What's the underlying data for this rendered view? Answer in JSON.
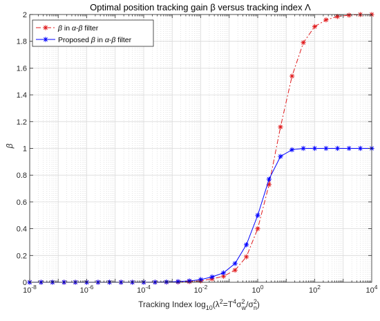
{
  "chart_data": {
    "type": "line",
    "title": "Optimal position tracking gain  β versus tracking index  Λ",
    "xlabel": "Tracking Index log",
    "xlabel_sub": "10",
    "xlabel_rest": "(λ",
    "xlabel_sup1": "2",
    "xlabel_mid1": "=T",
    "xlabel_sup2": "4",
    "xlabel_mid2": "σ",
    "xlabel_sup3": "2",
    "xlabel_sub3": "w",
    "xlabel_mid3": "/σ",
    "xlabel_sup4": "2",
    "xlabel_sub4": "n",
    "xlabel_end": ")",
    "ylabel": "β",
    "x_scale": "log",
    "xlim": [
      1e-08,
      10000
    ],
    "ylim": [
      0,
      2
    ],
    "grid": true,
    "legend_position": "top-left",
    "x_ticks": [
      {
        "value": 1e-08,
        "base": "10",
        "exp": "-8"
      },
      {
        "value": 1e-06,
        "base": "10",
        "exp": "-6"
      },
      {
        "value": 0.0001,
        "base": "10",
        "exp": "-4"
      },
      {
        "value": 0.01,
        "base": "10",
        "exp": "-2"
      },
      {
        "value": 1,
        "base": "10",
        "exp": "0"
      },
      {
        "value": 100,
        "base": "10",
        "exp": "2"
      },
      {
        "value": 10000,
        "base": "10",
        "exp": "4"
      }
    ],
    "y_ticks": [
      "0",
      "0.2",
      "0.4",
      "0.6",
      "0.8",
      "1",
      "1.2",
      "1.4",
      "1.6",
      "1.8",
      "2"
    ],
    "x": [
      1e-08,
      2.5e-08,
      6.3e-08,
      1.6e-07,
      4e-07,
      1e-06,
      2.5e-06,
      6.3e-06,
      1.6e-05,
      4e-05,
      0.0001,
      0.00025,
      0.00063,
      0.0016,
      0.004,
      0.01,
      0.025,
      0.063,
      0.16,
      0.4,
      1,
      2.5,
      6.3,
      16,
      40,
      100,
      250,
      630,
      1600,
      4000,
      10000
    ],
    "series": [
      {
        "name": "β in α-β filter",
        "legend_parts": [
          "β",
          " in ",
          "α",
          "-",
          "β",
          " filter"
        ],
        "color": "#e0191b",
        "dash": "dashdot",
        "values": [
          0,
          0,
          0,
          0,
          0,
          0,
          0,
          0,
          0,
          0,
          0,
          0.0005,
          0.001,
          0.002,
          0.005,
          0.01,
          0.025,
          0.045,
          0.09,
          0.19,
          0.4,
          0.73,
          1.16,
          1.54,
          1.79,
          1.91,
          1.96,
          1.985,
          1.995,
          2.0,
          2.0
        ]
      },
      {
        "name": "Proposed β in α-β filter",
        "legend_parts": [
          "Proposed ",
          "β",
          " in ",
          "α",
          "-",
          "β",
          " filter"
        ],
        "color": "#0000ff",
        "dash": "solid",
        "values": [
          0,
          0,
          0,
          0,
          0,
          0,
          0,
          0,
          0,
          0,
          0,
          0.0005,
          0.002,
          0.005,
          0.01,
          0.02,
          0.04,
          0.07,
          0.14,
          0.28,
          0.5,
          0.77,
          0.94,
          0.99,
          1.0,
          1.0,
          1.0,
          1.0,
          1.0,
          1.0,
          1.0
        ]
      }
    ]
  }
}
